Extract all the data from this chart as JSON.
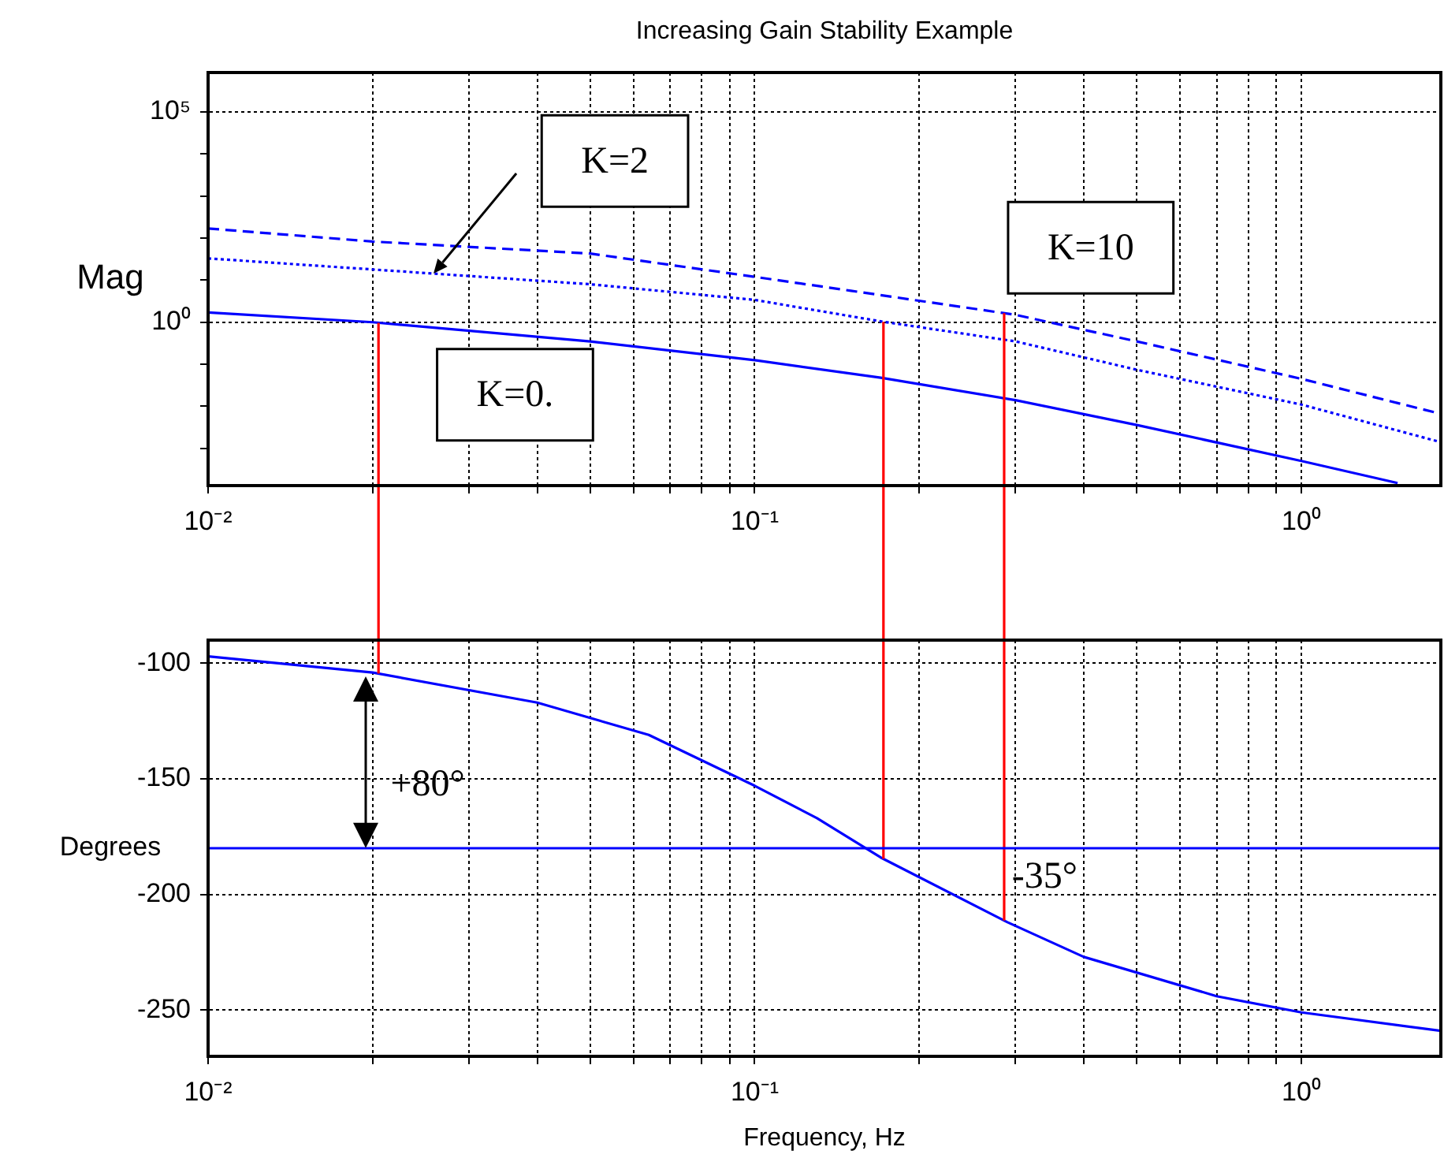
{
  "chart_data": [
    {
      "type": "line",
      "title": "Increasing Gain Stability Example",
      "ylabel": "Mag",
      "log": "xy",
      "grid": true,
      "marker": "none",
      "xlim": [
        0.01,
        1.8
      ],
      "ylim": [
        0.00013,
        870000
      ],
      "xticks": [
        {
          "value": 0.01,
          "label": "10⁻²"
        },
        {
          "value": 0.02,
          "label": null
        },
        {
          "value": 0.03,
          "label": null
        },
        {
          "value": 0.04,
          "label": null
        },
        {
          "value": 0.05,
          "label": null
        },
        {
          "value": 0.06,
          "label": null
        },
        {
          "value": 0.07,
          "label": null
        },
        {
          "value": 0.08,
          "label": null
        },
        {
          "value": 0.09,
          "label": null
        },
        {
          "value": 0.1,
          "label": "10⁻¹"
        },
        {
          "value": 0.2,
          "label": null
        },
        {
          "value": 0.3,
          "label": null
        },
        {
          "value": 0.4,
          "label": null
        },
        {
          "value": 0.5,
          "label": null
        },
        {
          "value": 0.6,
          "label": null
        },
        {
          "value": 0.7,
          "label": null
        },
        {
          "value": 0.8,
          "label": null
        },
        {
          "value": 0.9,
          "label": null
        },
        {
          "value": 1,
          "label": "10⁰"
        }
      ],
      "yticks": [
        {
          "value": 0.001,
          "label": null
        },
        {
          "value": 0.01,
          "label": null
        },
        {
          "value": 0.1,
          "label": null
        },
        {
          "value": 1,
          "label": "10⁰"
        },
        {
          "value": 10,
          "label": null
        },
        {
          "value": 100,
          "label": null
        },
        {
          "value": 1000,
          "label": null
        },
        {
          "value": 10000,
          "label": null
        },
        {
          "value": 100000,
          "label": "10⁵"
        }
      ],
      "series": [
        {
          "name": "K=0.",
          "color": "#0000ff",
          "line_style": "solid",
          "x": [
            0.01,
            0.02,
            0.05,
            0.1,
            0.17,
            0.3,
            0.5,
            1.0,
            1.5
          ],
          "values": [
            1.7,
            1.0,
            0.35,
            0.125,
            0.048,
            0.014,
            0.0036,
            0.0005,
            0.00015
          ]
        },
        {
          "color": "#0000ff",
          "line_style": "dotted",
          "x": [
            0.01,
            0.02,
            0.05,
            0.1,
            0.17,
            0.3,
            0.5,
            1.0,
            1.8
          ],
          "values": [
            33,
            18,
            8,
            3.4,
            1.05,
            0.35,
            0.074,
            0.011,
            0.0014
          ]
        },
        {
          "name": "K=10",
          "color": "#0000ff",
          "line_style": "dashed",
          "x": [
            0.01,
            0.02,
            0.05,
            0.1,
            0.15,
            0.3,
            0.5,
            1.0,
            1.8
          ],
          "values": [
            170,
            83,
            43,
            12,
            5.6,
            1.5,
            0.35,
            0.045,
            0.0066
          ]
        }
      ],
      "ref_lines": [
        {
          "axis": "x",
          "value": 0.0205,
          "color": "#ff0000"
        },
        {
          "axis": "x",
          "value": 0.172,
          "color": "#ff0000"
        },
        {
          "axis": "x",
          "value": 0.286,
          "color": "#ff0000"
        }
      ],
      "annotations": [
        "K=2"
      ]
    },
    {
      "type": "line",
      "xlabel": "Frequency, Hz",
      "ylabel": "Degrees",
      "log": "x",
      "grid": true,
      "marker": "none",
      "xlim": [
        0.01,
        1.8
      ],
      "ylim": [
        -270,
        -90
      ],
      "xticks": [
        {
          "value": 0.01,
          "label": "10⁻²"
        },
        {
          "value": 0.02,
          "label": null
        },
        {
          "value": 0.03,
          "label": null
        },
        {
          "value": 0.04,
          "label": null
        },
        {
          "value": 0.05,
          "label": null
        },
        {
          "value": 0.06,
          "label": null
        },
        {
          "value": 0.07,
          "label": null
        },
        {
          "value": 0.08,
          "label": null
        },
        {
          "value": 0.09,
          "label": null
        },
        {
          "value": 0.1,
          "label": "10⁻¹"
        },
        {
          "value": 0.2,
          "label": null
        },
        {
          "value": 0.3,
          "label": null
        },
        {
          "value": 0.4,
          "label": null
        },
        {
          "value": 0.5,
          "label": null
        },
        {
          "value": 0.6,
          "label": null
        },
        {
          "value": 0.7,
          "label": null
        },
        {
          "value": 0.8,
          "label": null
        },
        {
          "value": 0.9,
          "label": null
        },
        {
          "value": 1,
          "label": "10⁰"
        }
      ],
      "yticks": [
        -100,
        -150,
        -200,
        -250
      ],
      "series": [
        {
          "color": "#0000ff",
          "line_style": "solid",
          "x": [
            0.01,
            0.02,
            0.04,
            0.064,
            0.1,
            0.13,
            0.17,
            0.29,
            0.4,
            0.7,
            1.0,
            1.8
          ],
          "values": [
            -97,
            -104,
            -117,
            -131,
            -153,
            -167,
            -184,
            -212,
            -227,
            -244,
            -251,
            -259
          ]
        }
      ],
      "ref_lines": [
        {
          "axis": "x",
          "value": 0.0205,
          "color": "#ff0000"
        },
        {
          "axis": "x",
          "value": 0.172,
          "color": "#ff0000"
        },
        {
          "axis": "x",
          "value": 0.286,
          "color": "#ff0000"
        },
        {
          "axis": "y",
          "value": -180,
          "color": "#0000ff"
        }
      ],
      "annotations": [
        "+80°",
        "-35°"
      ]
    }
  ]
}
